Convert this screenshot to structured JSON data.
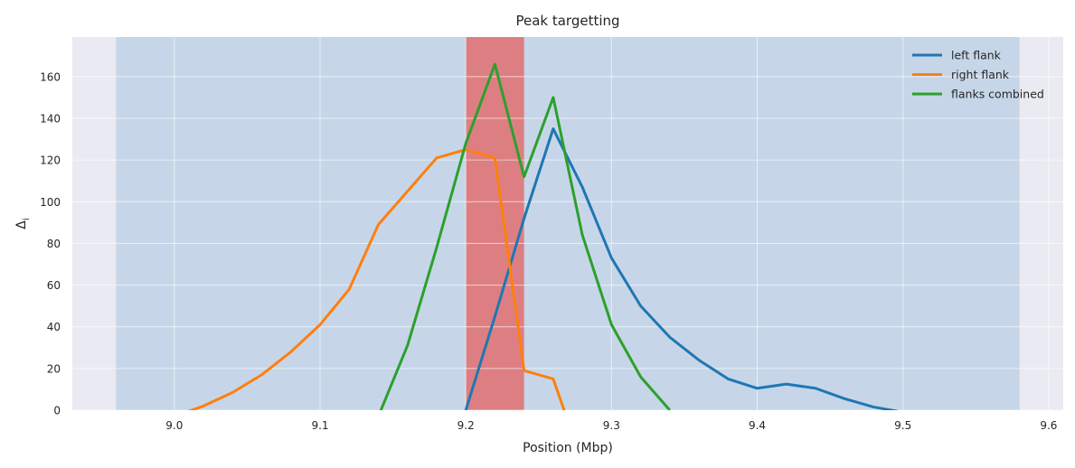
{
  "chart_data": {
    "type": "line",
    "title": "Peak targetting",
    "xlabel": "Position (Mbp)",
    "ylabel": "Δ",
    "ylabel_subscript": "i",
    "xlim": [
      8.93,
      9.61
    ],
    "ylim": [
      0,
      179
    ],
    "xticks": [
      9.0,
      9.1,
      9.2,
      9.3,
      9.4,
      9.5,
      9.6
    ],
    "xtick_labels": [
      "9.0",
      "9.1",
      "9.2",
      "9.3",
      "9.4",
      "9.5",
      "9.6"
    ],
    "yticks": [
      0,
      20,
      40,
      60,
      80,
      100,
      120,
      140,
      160
    ],
    "ytick_labels": [
      "0",
      "20",
      "40",
      "60",
      "80",
      "100",
      "120",
      "140",
      "160"
    ],
    "grid": true,
    "legend_position": "top-right",
    "background_color": "#eaeaf2",
    "spans": [
      {
        "x0": 8.96,
        "x1": 9.58,
        "color": "#a8c5e0",
        "opacity": 0.55
      },
      {
        "x0": 9.2,
        "x1": 9.24,
        "color": "#e07070",
        "opacity": 0.85
      }
    ],
    "series": [
      {
        "name": "left flank",
        "color": "#1f77b4",
        "x": [
          9.2,
          9.22,
          9.24,
          9.26,
          9.28,
          9.3,
          9.32,
          9.34,
          9.36,
          9.38,
          9.4,
          9.42,
          9.44,
          9.46,
          9.48,
          9.5
        ],
        "y": [
          0,
          45,
          92,
          135,
          107,
          73,
          50,
          35,
          24,
          15,
          10.5,
          12.5,
          10.5,
          5.5,
          1.5,
          -1
        ]
      },
      {
        "name": "right flank",
        "color": "#ff7f0e",
        "x": [
          9.0,
          9.02,
          9.04,
          9.06,
          9.08,
          9.1,
          9.12,
          9.14,
          9.16,
          9.18,
          9.2,
          9.22,
          9.24,
          9.26,
          9.27
        ],
        "y": [
          -3,
          2,
          8.5,
          17,
          28,
          41,
          58,
          89,
          105,
          121,
          125,
          121,
          19,
          15,
          -5
        ]
      },
      {
        "name": "flanks combined",
        "color": "#2ca02c",
        "x": [
          9.14,
          9.16,
          9.18,
          9.2,
          9.22,
          9.24,
          9.26,
          9.28,
          9.3,
          9.32,
          9.34
        ],
        "y": [
          -3,
          31,
          78,
          128,
          166,
          112,
          150,
          84,
          41,
          16,
          0
        ]
      }
    ]
  }
}
